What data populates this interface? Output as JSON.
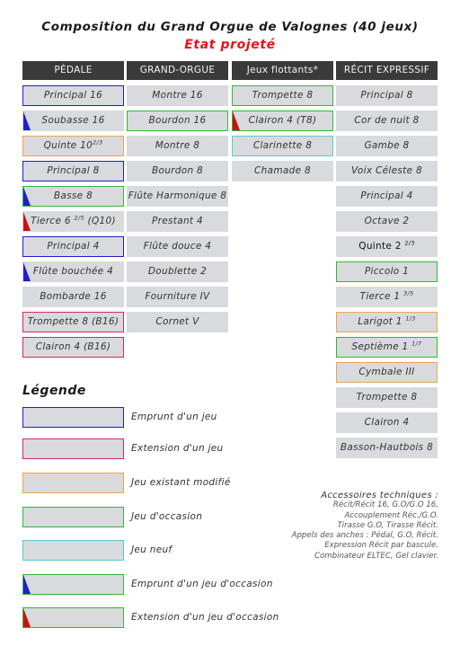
{
  "title": "Composition du Grand Orgue de Valognes (40 jeux)",
  "subtitle": "Etat projeté",
  "columns": [
    {
      "header": "PÉDALE",
      "stops": [
        {
          "name": "Principal 16",
          "border": "blue",
          "marker": ""
        },
        {
          "name": "Soubasse 16",
          "border": "",
          "marker": "blue"
        },
        {
          "name": "Quinte 10",
          "sup": "2/3",
          "border": "orange",
          "marker": ""
        },
        {
          "name": "Principal 8",
          "border": "blue",
          "marker": ""
        },
        {
          "name": "Basse 8",
          "border": "green",
          "marker": "blue"
        },
        {
          "name": "Tierce 6 ",
          "sup": "2/5",
          "suffix": " (Q10)",
          "border": "",
          "marker": "red"
        },
        {
          "name": "Principal 4",
          "border": "blue",
          "marker": ""
        },
        {
          "name": "Flûte bouchée 4",
          "border": "",
          "marker": "blue"
        },
        {
          "name": "Bombarde 16",
          "border": "",
          "marker": ""
        },
        {
          "name": "Trompette 8 (B16)",
          "border": "pink",
          "marker": ""
        },
        {
          "name": "Clairon 4 (B16)",
          "border": "pink",
          "marker": ""
        }
      ]
    },
    {
      "header": "GRAND-ORGUE",
      "stops": [
        {
          "name": "Montre 16",
          "border": "",
          "marker": ""
        },
        {
          "name": "Bourdon 16",
          "border": "green",
          "marker": ""
        },
        {
          "name": "Montre 8",
          "border": "",
          "marker": ""
        },
        {
          "name": "Bourdon 8",
          "border": "",
          "marker": ""
        },
        {
          "name": "Flûte Harmonique 8",
          "border": "",
          "marker": ""
        },
        {
          "name": "Prestant 4",
          "border": "",
          "marker": ""
        },
        {
          "name": "Flûte douce 4",
          "border": "",
          "marker": ""
        },
        {
          "name": "Doublette 2",
          "border": "",
          "marker": ""
        },
        {
          "name": "Fourniture IV",
          "border": "",
          "marker": ""
        },
        {
          "name": "Cornet V",
          "border": "",
          "marker": ""
        }
      ]
    },
    {
      "header": "Jeux flottants*",
      "stops": [
        {
          "name": "Trompette 8",
          "border": "green",
          "marker": ""
        },
        {
          "name": "Clairon 4 (T8)",
          "border": "green",
          "marker": "red"
        },
        {
          "name": "Clarinette 8",
          "border": "cyan",
          "marker": ""
        },
        {
          "name": "Chamade 8",
          "border": "",
          "marker": ""
        }
      ]
    },
    {
      "header": "RÉCIT EXPRESSIF",
      "stops": [
        {
          "name": "Principal 8",
          "border": "",
          "marker": ""
        },
        {
          "name": "Cor de nuit 8",
          "border": "",
          "marker": ""
        },
        {
          "name": "Gambe 8",
          "border": "",
          "marker": ""
        },
        {
          "name": "Voix Céleste 8",
          "border": "",
          "marker": ""
        },
        {
          "name": "Principal 4",
          "border": "",
          "marker": ""
        },
        {
          "name": "Octave 2",
          "border": "",
          "marker": ""
        },
        {
          "name": "Quinte 2 ",
          "sup": "2/3",
          "border": "",
          "marker": "",
          "style": "bold"
        },
        {
          "name": "Piccolo 1",
          "border": "green",
          "marker": ""
        },
        {
          "name": "Tierce 1 ",
          "sup": "3/5",
          "border": "",
          "marker": ""
        },
        {
          "name": "Larigot 1 ",
          "sup": "1/3",
          "border": "orange",
          "marker": ""
        },
        {
          "name": "Septième 1 ",
          "sup": "1/7",
          "border": "green",
          "marker": ""
        },
        {
          "name": "Cymbale III",
          "border": "orange",
          "marker": ""
        },
        {
          "name": "Trompette 8",
          "border": "",
          "marker": ""
        },
        {
          "name": "Clairon 4",
          "border": "",
          "marker": ""
        },
        {
          "name": "Basson-Hautbois 8",
          "border": "",
          "marker": ""
        }
      ]
    }
  ],
  "legend": {
    "title": "Légende",
    "items": [
      {
        "label": "Emprunt d'un jeu",
        "border": "blue",
        "marker": ""
      },
      {
        "label": "Extension d'un jeu",
        "border": "pink",
        "marker": ""
      },
      {
        "label": "Jeu existant modifié",
        "border": "orange",
        "marker": ""
      },
      {
        "label": "Jeu d'occasion",
        "border": "green",
        "marker": ""
      },
      {
        "label": "Jeu neuf",
        "border": "cyan",
        "marker": ""
      },
      {
        "label": "Emprunt d'un jeu d'occasion",
        "border": "green",
        "marker": "blue"
      },
      {
        "label": "Extension d'un jeu d'occasion",
        "border": "green",
        "marker": "red"
      }
    ]
  },
  "accessories": {
    "title": "Accessoires techniques :",
    "lines": [
      "Récit/Récit 16, G.O/G.O 16,",
      "Accouplement Réc./G.O.",
      "Tirasse G.O, Tirasse Récit.",
      "Appels des anches : Pédal, G.O, Récit.",
      "Expression Récit par bascule.",
      "Combinateur ELTEC, Gel clavier."
    ]
  },
  "colors": {
    "header_bg": "#3a3a3a",
    "cell_bg": "#d8dadd",
    "blue": "#1e1ec8",
    "green": "#32b832",
    "orange": "#f0a24a",
    "pink": "#d42a5a",
    "cyan": "#55ccd0",
    "red": "#cc1010",
    "subtitle": "#e8101a"
  }
}
